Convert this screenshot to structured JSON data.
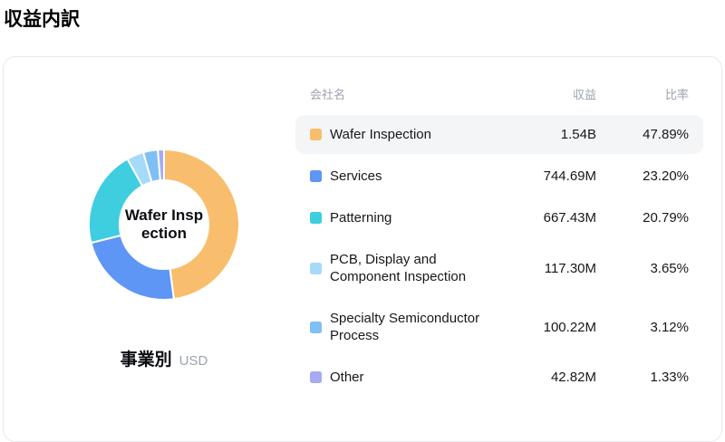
{
  "page": {
    "title": "収益内訳"
  },
  "card": {
    "chart": {
      "center_label": "Wafer Inspection",
      "group_label": "事業別",
      "unit": "USD"
    },
    "table": {
      "headers": {
        "name": "会社名",
        "revenue": "収益",
        "ratio": "比率"
      },
      "rows": [
        {
          "label": "Wafer Inspection",
          "revenue": "1.54B",
          "ratio": "47.89%",
          "color": "#F8BE6E",
          "highlighted": true
        },
        {
          "label": "Services",
          "revenue": "744.69M",
          "ratio": "23.20%",
          "color": "#5E96F5",
          "highlighted": false
        },
        {
          "label": "Patterning",
          "revenue": "667.43M",
          "ratio": "20.79%",
          "color": "#3ECEDF",
          "highlighted": false
        },
        {
          "label": "PCB, Display and Component Inspection",
          "revenue": "117.30M",
          "ratio": "3.65%",
          "color": "#A6DAF9",
          "highlighted": false
        },
        {
          "label": "Specialty Semiconductor Process",
          "revenue": "100.22M",
          "ratio": "3.12%",
          "color": "#7FBFF5",
          "highlighted": false
        },
        {
          "label": "Other",
          "revenue": "42.82M",
          "ratio": "1.33%",
          "color": "#A7AAF3",
          "highlighted": false
        }
      ]
    }
  },
  "chart_data": {
    "type": "pie",
    "donut": true,
    "title": "収益内訳",
    "group_label": "事業別",
    "unit": "USD",
    "center_label": "Wafer Inspection",
    "categories": [
      "Wafer Inspection",
      "Services",
      "Patterning",
      "PCB, Display and Component Inspection",
      "Specialty Semiconductor Process",
      "Other"
    ],
    "values": [
      47.89,
      23.2,
      20.79,
      3.65,
      3.12,
      1.33
    ],
    "revenues": [
      "1.54B",
      "744.69M",
      "667.43M",
      "117.30M",
      "100.22M",
      "42.82M"
    ],
    "colors": [
      "#F8BE6E",
      "#5E96F5",
      "#3ECEDF",
      "#A6DAF9",
      "#7FBFF5",
      "#A7AAF3"
    ],
    "start_angle": "top",
    "direction": "clockwise",
    "legend_position": "right-table"
  }
}
